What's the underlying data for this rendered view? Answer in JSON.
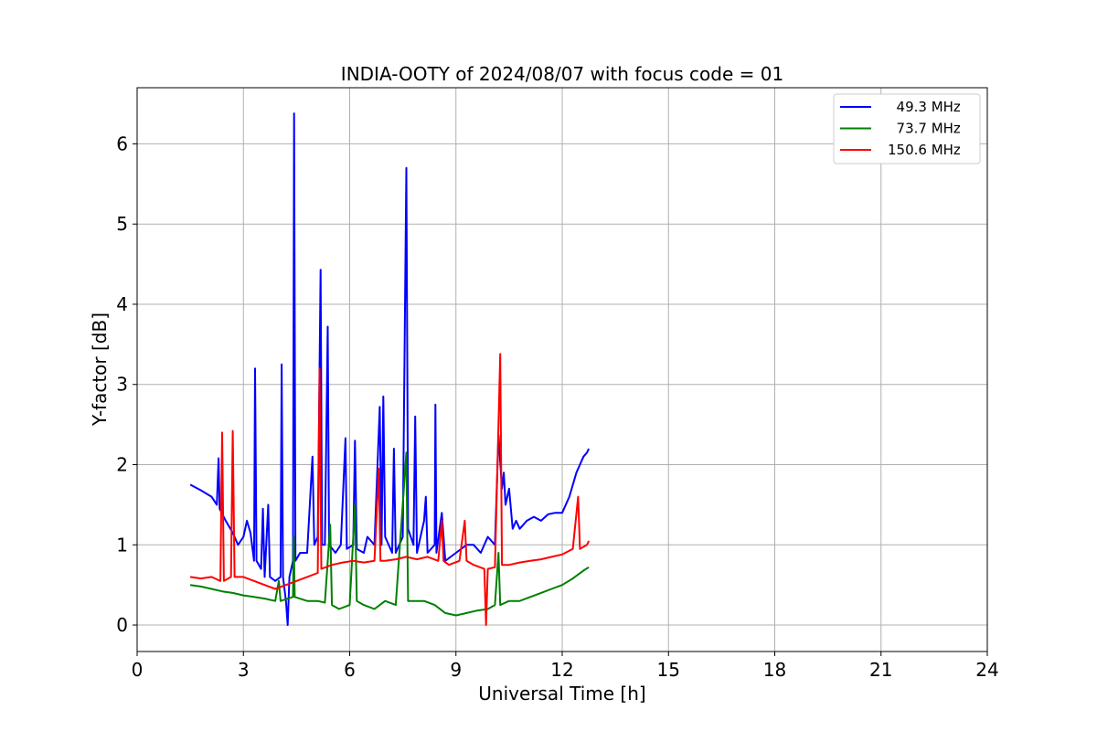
{
  "chart_data": {
    "type": "line",
    "title": "INDIA-OOTY of 2024/08/07 with focus code = 01",
    "xlabel": "Universal Time [h]",
    "ylabel": "Y-factor [dB]",
    "xlim": [
      0,
      24
    ],
    "ylim": [
      -0.33,
      6.7
    ],
    "xticks": [
      0,
      3,
      6,
      9,
      12,
      15,
      18,
      21,
      24
    ],
    "yticks": [
      0,
      1,
      2,
      3,
      4,
      5,
      6
    ],
    "grid": true,
    "legend_position": "top-right",
    "series": [
      {
        "name": "  49.3 MHz",
        "color": "#0000ff",
        "points": [
          [
            1.5,
            1.75
          ],
          [
            1.8,
            1.68
          ],
          [
            2.1,
            1.6
          ],
          [
            2.25,
            1.5
          ],
          [
            2.3,
            2.08
          ],
          [
            2.33,
            1.45
          ],
          [
            2.5,
            1.3
          ],
          [
            2.7,
            1.15
          ],
          [
            2.85,
            1.0
          ],
          [
            3.0,
            1.1
          ],
          [
            3.1,
            1.3
          ],
          [
            3.2,
            1.15
          ],
          [
            3.3,
            0.8
          ],
          [
            3.33,
            3.2
          ],
          [
            3.37,
            0.8
          ],
          [
            3.5,
            0.7
          ],
          [
            3.55,
            1.45
          ],
          [
            3.6,
            0.6
          ],
          [
            3.7,
            1.5
          ],
          [
            3.75,
            0.6
          ],
          [
            3.9,
            0.55
          ],
          [
            4.05,
            0.6
          ],
          [
            4.08,
            3.25
          ],
          [
            4.12,
            0.6
          ],
          [
            4.2,
            0.3
          ],
          [
            4.25,
            0.0
          ],
          [
            4.3,
            0.6
          ],
          [
            4.4,
            0.8
          ],
          [
            4.43,
            6.38
          ],
          [
            4.47,
            0.8
          ],
          [
            4.6,
            0.9
          ],
          [
            4.8,
            0.9
          ],
          [
            4.95,
            2.1
          ],
          [
            5.0,
            1.0
          ],
          [
            5.1,
            1.1
          ],
          [
            5.18,
            4.43
          ],
          [
            5.22,
            1.0
          ],
          [
            5.3,
            1.0
          ],
          [
            5.38,
            3.72
          ],
          [
            5.42,
            1.0
          ],
          [
            5.6,
            0.9
          ],
          [
            5.75,
            1.0
          ],
          [
            5.88,
            2.33
          ],
          [
            5.92,
            0.95
          ],
          [
            6.1,
            1.0
          ],
          [
            6.15,
            2.3
          ],
          [
            6.2,
            0.95
          ],
          [
            6.4,
            0.9
          ],
          [
            6.5,
            1.1
          ],
          [
            6.7,
            1.0
          ],
          [
            6.85,
            2.72
          ],
          [
            6.9,
            1.0
          ],
          [
            6.95,
            2.85
          ],
          [
            7.0,
            1.1
          ],
          [
            7.2,
            0.9
          ],
          [
            7.25,
            2.2
          ],
          [
            7.3,
            0.9
          ],
          [
            7.5,
            1.1
          ],
          [
            7.6,
            5.7
          ],
          [
            7.65,
            1.2
          ],
          [
            7.8,
            1.0
          ],
          [
            7.85,
            2.6
          ],
          [
            7.9,
            0.9
          ],
          [
            8.1,
            1.3
          ],
          [
            8.15,
            1.6
          ],
          [
            8.2,
            0.9
          ],
          [
            8.4,
            1.0
          ],
          [
            8.42,
            2.75
          ],
          [
            8.45,
            0.9
          ],
          [
            8.6,
            1.4
          ],
          [
            8.7,
            0.8
          ],
          [
            9.0,
            0.9
          ],
          [
            9.3,
            1.0
          ],
          [
            9.5,
            1.0
          ],
          [
            9.7,
            0.9
          ],
          [
            9.9,
            1.1
          ],
          [
            10.1,
            1.0
          ],
          [
            10.2,
            2.37
          ],
          [
            10.3,
            1.7
          ],
          [
            10.35,
            1.9
          ],
          [
            10.4,
            1.5
          ],
          [
            10.5,
            1.7
          ],
          [
            10.6,
            1.2
          ],
          [
            10.7,
            1.3
          ],
          [
            10.8,
            1.2
          ],
          [
            11.0,
            1.3
          ],
          [
            11.2,
            1.35
          ],
          [
            11.4,
            1.3
          ],
          [
            11.6,
            1.38
          ],
          [
            11.8,
            1.4
          ],
          [
            12.0,
            1.4
          ],
          [
            12.2,
            1.6
          ],
          [
            12.4,
            1.9
          ],
          [
            12.6,
            2.1
          ],
          [
            12.7,
            2.15
          ],
          [
            12.75,
            2.2
          ]
        ]
      },
      {
        "name": "  73.7 MHz",
        "color": "#008000",
        "points": [
          [
            1.5,
            0.5
          ],
          [
            1.8,
            0.48
          ],
          [
            2.1,
            0.45
          ],
          [
            2.4,
            0.42
          ],
          [
            2.7,
            0.4
          ],
          [
            3.0,
            0.37
          ],
          [
            3.3,
            0.35
          ],
          [
            3.6,
            0.33
          ],
          [
            3.9,
            0.3
          ],
          [
            4.0,
            0.55
          ],
          [
            4.05,
            0.3
          ],
          [
            4.4,
            0.35
          ],
          [
            4.42,
            1.1
          ],
          [
            4.45,
            0.35
          ],
          [
            4.8,
            0.3
          ],
          [
            5.1,
            0.3
          ],
          [
            5.3,
            0.28
          ],
          [
            5.45,
            1.25
          ],
          [
            5.5,
            0.25
          ],
          [
            5.7,
            0.2
          ],
          [
            6.0,
            0.25
          ],
          [
            6.15,
            1.5
          ],
          [
            6.2,
            0.3
          ],
          [
            6.4,
            0.25
          ],
          [
            6.7,
            0.2
          ],
          [
            7.0,
            0.3
          ],
          [
            7.3,
            0.25
          ],
          [
            7.6,
            2.15
          ],
          [
            7.65,
            0.3
          ],
          [
            7.9,
            0.3
          ],
          [
            8.1,
            0.3
          ],
          [
            8.4,
            0.25
          ],
          [
            8.7,
            0.15
          ],
          [
            9.0,
            0.12
          ],
          [
            9.3,
            0.15
          ],
          [
            9.6,
            0.18
          ],
          [
            9.9,
            0.2
          ],
          [
            10.1,
            0.25
          ],
          [
            10.2,
            0.9
          ],
          [
            10.25,
            0.25
          ],
          [
            10.5,
            0.3
          ],
          [
            10.8,
            0.3
          ],
          [
            11.1,
            0.35
          ],
          [
            11.4,
            0.4
          ],
          [
            11.7,
            0.45
          ],
          [
            12.0,
            0.5
          ],
          [
            12.3,
            0.58
          ],
          [
            12.6,
            0.68
          ],
          [
            12.75,
            0.72
          ]
        ]
      },
      {
        "name": "150.6 MHz",
        "color": "#ff0000",
        "points": [
          [
            1.5,
            0.6
          ],
          [
            1.8,
            0.58
          ],
          [
            2.1,
            0.6
          ],
          [
            2.35,
            0.55
          ],
          [
            2.4,
            2.4
          ],
          [
            2.45,
            0.55
          ],
          [
            2.65,
            0.6
          ],
          [
            2.7,
            2.42
          ],
          [
            2.75,
            0.6
          ],
          [
            3.0,
            0.6
          ],
          [
            3.3,
            0.55
          ],
          [
            3.6,
            0.5
          ],
          [
            3.9,
            0.45
          ],
          [
            4.2,
            0.5
          ],
          [
            4.5,
            0.55
          ],
          [
            4.8,
            0.6
          ],
          [
            5.1,
            0.65
          ],
          [
            5.15,
            3.2
          ],
          [
            5.2,
            0.7
          ],
          [
            5.5,
            0.75
          ],
          [
            5.8,
            0.78
          ],
          [
            6.1,
            0.8
          ],
          [
            6.4,
            0.78
          ],
          [
            6.7,
            0.8
          ],
          [
            6.82,
            1.95
          ],
          [
            6.87,
            0.8
          ],
          [
            7.0,
            0.8
          ],
          [
            7.3,
            0.82
          ],
          [
            7.6,
            0.85
          ],
          [
            7.9,
            0.82
          ],
          [
            8.2,
            0.85
          ],
          [
            8.5,
            0.8
          ],
          [
            8.6,
            1.3
          ],
          [
            8.65,
            0.8
          ],
          [
            8.8,
            0.75
          ],
          [
            9.1,
            0.8
          ],
          [
            9.25,
            1.3
          ],
          [
            9.3,
            0.8
          ],
          [
            9.5,
            0.75
          ],
          [
            9.8,
            0.7
          ],
          [
            9.85,
            0.0
          ],
          [
            9.9,
            0.7
          ],
          [
            10.1,
            0.72
          ],
          [
            10.25,
            3.38
          ],
          [
            10.3,
            0.75
          ],
          [
            10.5,
            0.75
          ],
          [
            10.8,
            0.78
          ],
          [
            11.1,
            0.8
          ],
          [
            11.4,
            0.82
          ],
          [
            11.7,
            0.85
          ],
          [
            12.0,
            0.88
          ],
          [
            12.3,
            0.95
          ],
          [
            12.45,
            1.6
          ],
          [
            12.5,
            0.95
          ],
          [
            12.7,
            1.0
          ],
          [
            12.75,
            1.05
          ]
        ]
      }
    ]
  }
}
